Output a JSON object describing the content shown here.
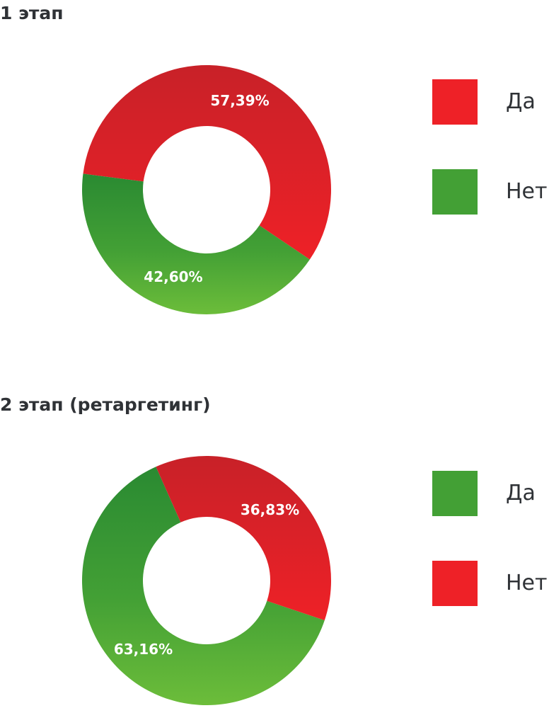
{
  "colors": {
    "red": "#ee2127",
    "red_dark": "#c82128",
    "green": "#43a035",
    "green_dark": "#2a8a32",
    "green_light": "#6cbd3a",
    "text": "#2f3236",
    "label": "#ffffff"
  },
  "chart_data": [
    {
      "type": "pie",
      "title": "1 этап",
      "donut": true,
      "slices": [
        {
          "name": "Да",
          "value": 57.39,
          "label": "57,39%",
          "color": "red"
        },
        {
          "name": "Нет",
          "value": 42.6,
          "label": "42,60%",
          "color": "green"
        }
      ],
      "legend": {
        "position": "right",
        "entries": [
          {
            "label": "Да",
            "color": "red"
          },
          {
            "label": "Нет",
            "color": "green"
          }
        ]
      }
    },
    {
      "type": "pie",
      "title": "2 этап (ретаргетинг)",
      "donut": true,
      "slices": [
        {
          "name": "Да",
          "value": 63.16,
          "label": "63,16%",
          "color": "green"
        },
        {
          "name": "Нет",
          "value": 36.83,
          "label": "36,83%",
          "color": "red"
        }
      ],
      "legend": {
        "position": "right",
        "entries": [
          {
            "label": "Да",
            "color": "green"
          },
          {
            "label": "Нет",
            "color": "red"
          }
        ]
      }
    }
  ]
}
